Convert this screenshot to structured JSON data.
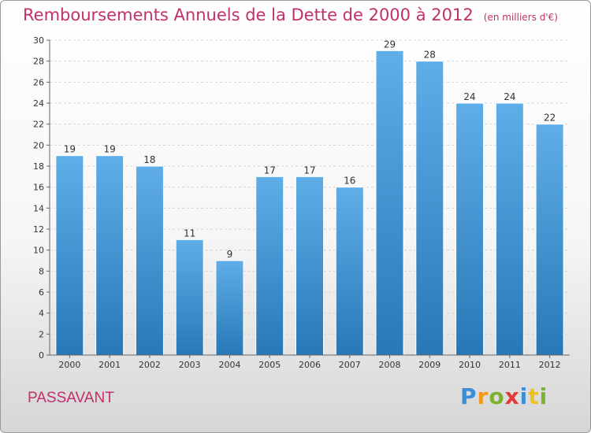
{
  "chart_data": {
    "type": "bar",
    "title": "Remboursements Annuels de la Dette de 2000 à 2012",
    "unit": "(en milliers d'€)",
    "categories": [
      "2000",
      "2001",
      "2002",
      "2003",
      "2004",
      "2005",
      "2006",
      "2007",
      "2008",
      "2009",
      "2010",
      "2011",
      "2012"
    ],
    "values": [
      19,
      19,
      18,
      11,
      9,
      17,
      17,
      16,
      29,
      28,
      24,
      24,
      22
    ],
    "ylim": [
      0,
      30
    ],
    "yticks": [
      0,
      2,
      4,
      6,
      8,
      10,
      12,
      14,
      16,
      18,
      20,
      22,
      24,
      26,
      28,
      30
    ],
    "grid": true,
    "bar_color": "#3a8fd1"
  },
  "commune": "PASSAVANT",
  "logo": {
    "letters": [
      "P",
      "r",
      "o",
      "x",
      "i",
      "t",
      "i"
    ],
    "colors": [
      "#3b8ed8",
      "#f39a1e",
      "#7ab22e",
      "#e03a3a",
      "#3b8ed8",
      "#f0c020",
      "#7ab22e"
    ]
  }
}
